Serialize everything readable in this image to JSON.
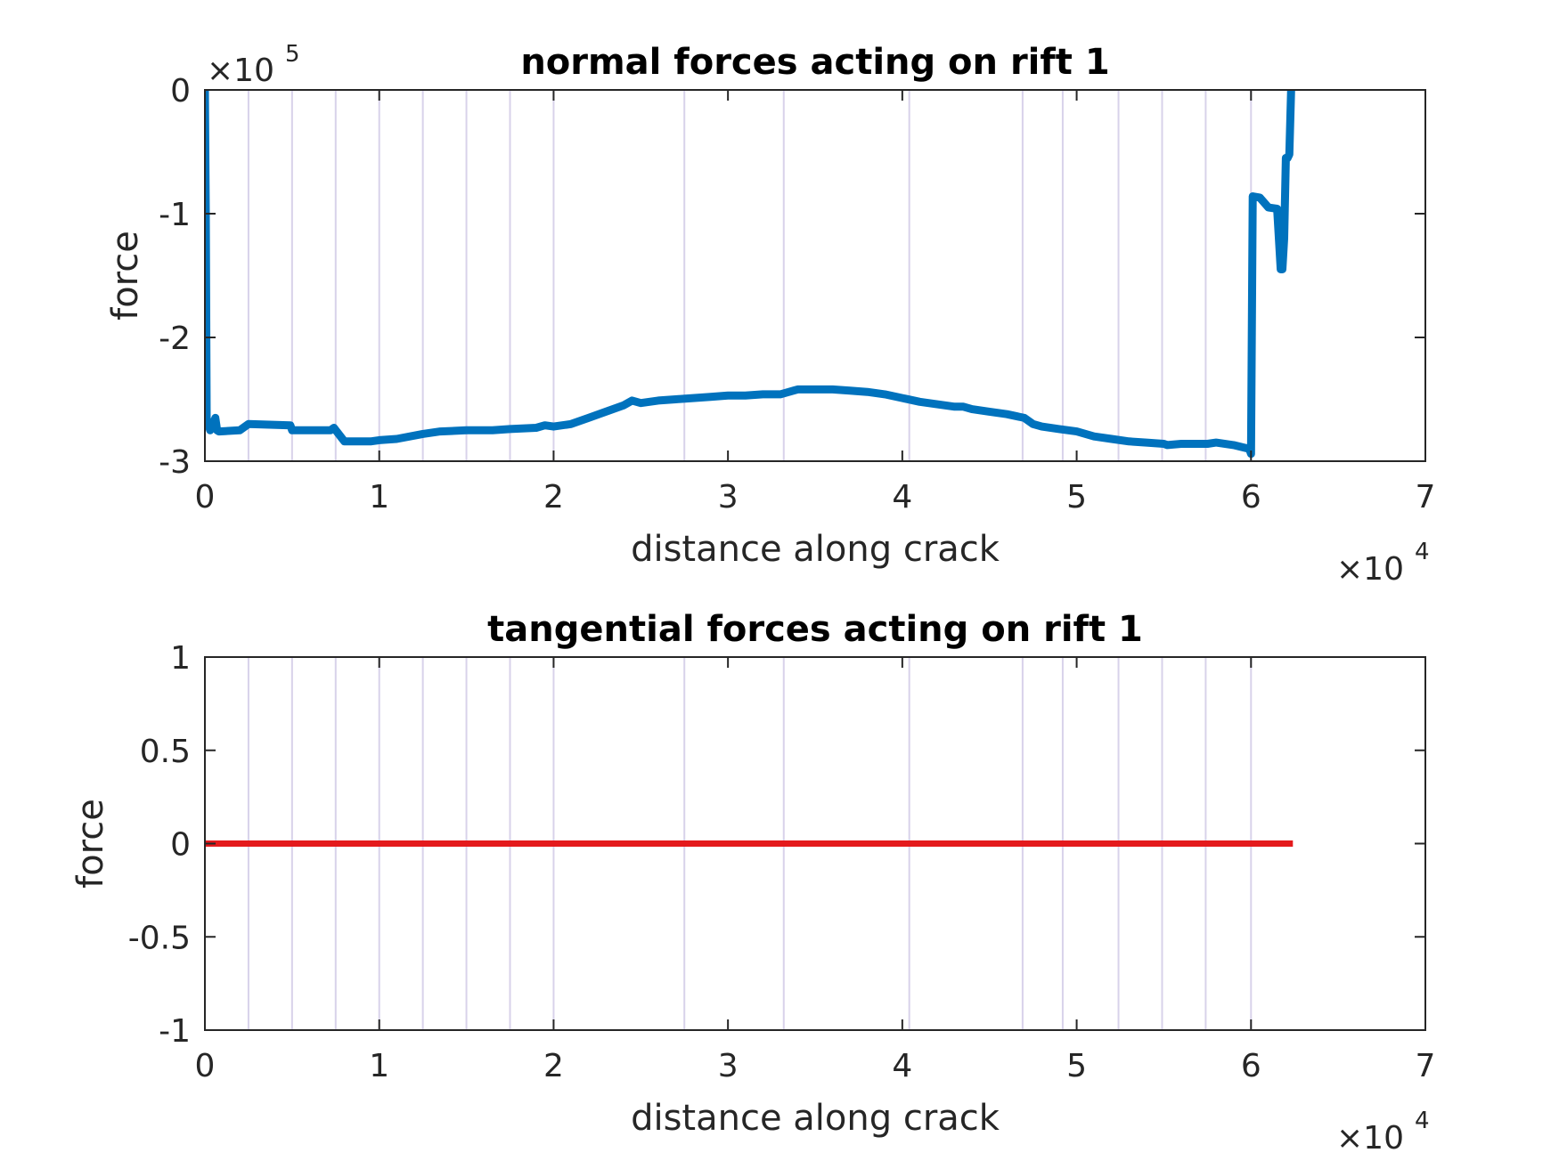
{
  "colors": {
    "normal_series": "#0072BD",
    "tangential_series": "#E41A1C",
    "vertical_lines": "#D8D2EA",
    "axes": "#262626"
  },
  "chart_data": [
    {
      "type": "line",
      "title": "normal forces acting on rift 1",
      "xlabel": "distance along crack",
      "ylabel": "force",
      "xlim": [
        0,
        70000
      ],
      "ylim": [
        -300000,
        0
      ],
      "x_ticks": [
        0,
        10000,
        20000,
        30000,
        40000,
        50000,
        60000,
        70000
      ],
      "x_tick_labels": [
        "0",
        "1",
        "2",
        "3",
        "4",
        "5",
        "6",
        "7"
      ],
      "y_ticks": [
        -300000,
        -200000,
        -100000,
        0
      ],
      "y_tick_labels": [
        "-3",
        "-2",
        "-1",
        "0"
      ],
      "x_multiplier": {
        "base": "×10",
        "exponent": "4"
      },
      "y_multiplier": {
        "base": "×10",
        "exponent": "5"
      },
      "vertical_lines_x": [
        2500,
        5000,
        7500,
        10000,
        12500,
        15000,
        17500,
        20000,
        27500,
        33200,
        40400,
        46900,
        49200,
        52400,
        54900,
        57400,
        60000
      ],
      "grid": false,
      "series": [
        {
          "x": [
            0,
            50,
            100,
            200,
            300,
            500,
            600,
            700,
            800,
            2000,
            2500,
            4900,
            5000,
            7200,
            7400,
            8000,
            9500,
            10000,
            11000,
            12500,
            13500,
            15000,
            16500,
            17500,
            19000,
            19500,
            20000,
            21000,
            22000,
            23000,
            24000,
            24500,
            25000,
            26000,
            27000,
            28000,
            29000,
            30000,
            31000,
            32000,
            33000,
            33500,
            34000,
            35000,
            36000,
            37000,
            38000,
            39000,
            40000,
            41000,
            42000,
            43000,
            43500,
            44000,
            45000,
            46000,
            47000,
            47500,
            48000,
            49000,
            50000,
            51000,
            52000,
            53000,
            54000,
            55000,
            55200,
            56000,
            57500,
            58000,
            59000,
            59900,
            60000,
            60100,
            60500,
            61000,
            61500,
            61700,
            61800,
            61900,
            62000,
            62100,
            62200,
            62300,
            62500
          ],
          "y": [
            0,
            -100000,
            -265000,
            -270000,
            -275000,
            -270000,
            -265000,
            -275000,
            -276000,
            -275000,
            -270000,
            -271000,
            -275000,
            -275000,
            -273000,
            -284000,
            -284000,
            -283000,
            -282000,
            -278000,
            -276000,
            -275000,
            -275000,
            -274000,
            -273000,
            -271000,
            -272000,
            -270000,
            -265000,
            -260000,
            -255000,
            -251000,
            -253000,
            -251000,
            -250000,
            -249000,
            -248000,
            -247000,
            -247000,
            -246000,
            -246000,
            -244000,
            -242000,
            -242000,
            -242000,
            -243000,
            -244000,
            -246000,
            -249000,
            -252000,
            -254000,
            -256000,
            -256000,
            -258000,
            -260000,
            -262000,
            -265000,
            -270000,
            -272000,
            -274000,
            -276000,
            -280000,
            -282000,
            -284000,
            -285000,
            -286000,
            -287000,
            -286000,
            -286000,
            -285000,
            -287000,
            -290000,
            -294000,
            -86000,
            -87000,
            -95000,
            -96000,
            -145000,
            -145000,
            -120000,
            -55000,
            -55000,
            -52000,
            0,
            0
          ],
          "color": "#0072BD",
          "line_width": 9
        }
      ]
    },
    {
      "type": "line",
      "title": "tangential forces acting on rift 1",
      "xlabel": "distance along crack",
      "ylabel": "force",
      "xlim": [
        0,
        70000
      ],
      "ylim": [
        -1,
        1
      ],
      "x_ticks": [
        0,
        10000,
        20000,
        30000,
        40000,
        50000,
        60000,
        70000
      ],
      "x_tick_labels": [
        "0",
        "1",
        "2",
        "3",
        "4",
        "5",
        "6",
        "7"
      ],
      "y_ticks": [
        -1,
        -0.5,
        0,
        0.5,
        1
      ],
      "y_tick_labels": [
        "-1",
        "-0.5",
        "0",
        "0.5",
        "1"
      ],
      "x_multiplier": {
        "base": "×10",
        "exponent": "4"
      },
      "vertical_lines_x": [
        2500,
        5000,
        7500,
        10000,
        12500,
        15000,
        17500,
        20000,
        27500,
        33200,
        40400,
        46900,
        49200,
        52400,
        54900,
        57400,
        60000
      ],
      "grid": false,
      "series": [
        {
          "x": [
            0,
            62400
          ],
          "y": [
            0,
            0
          ],
          "color": "#E41A1C",
          "line_width": 7
        }
      ]
    }
  ]
}
